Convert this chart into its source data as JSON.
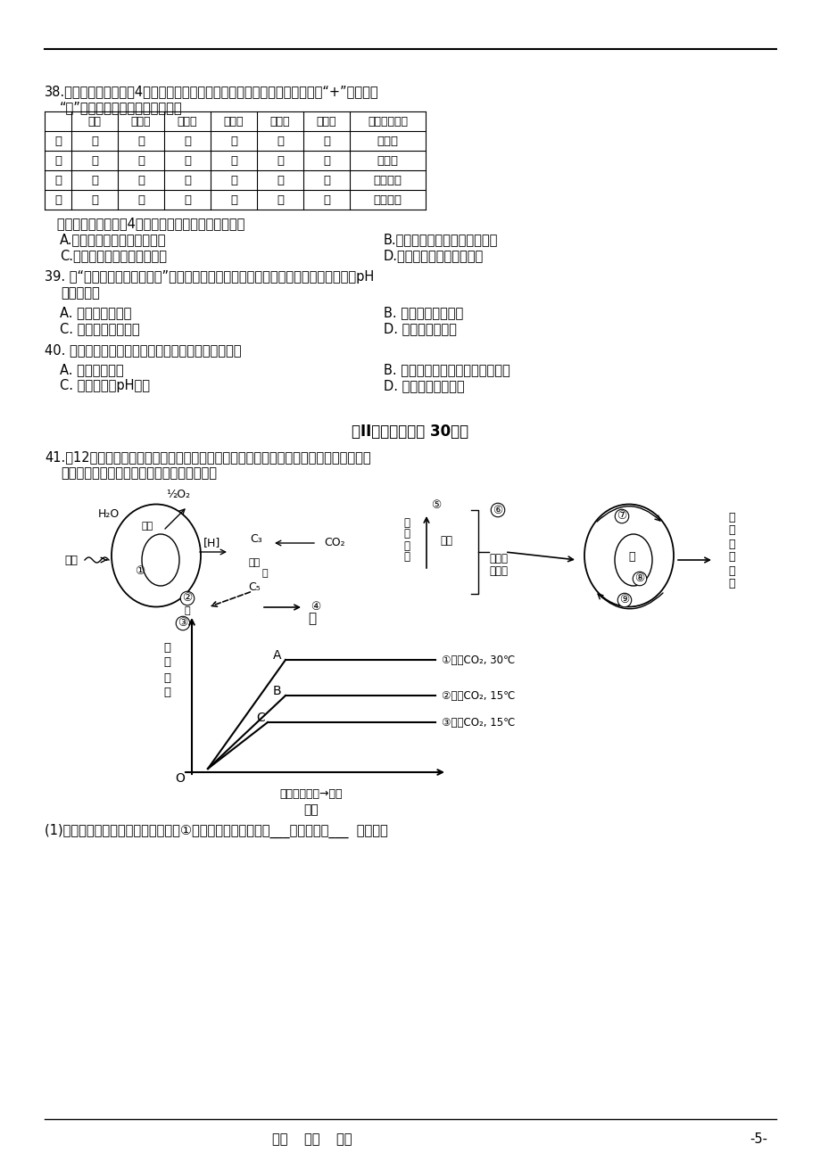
{
  "page_bg": "#ffffff",
  "table_headers": [
    "",
    "核模",
    "叶绻素",
    "叶维体",
    "线粒体",
    "中心体",
    "核糖体",
    "纤维素酶处理"
  ],
  "table_rows": [
    [
      "甲",
      "－",
      "＋",
      "－",
      "－",
      "－",
      "＋",
      "无变化"
    ],
    [
      "乙",
      "＋",
      "－",
      "－",
      "－",
      "＋",
      "＋",
      "无变化"
    ],
    [
      "丙",
      "＋",
      "－",
      "－",
      "＋",
      "－",
      "＋",
      "外层破坏"
    ],
    [
      "丁",
      "＋",
      "＋",
      "＋",
      "＋",
      "＋",
      "＋",
      "外层破坏"
    ]
  ]
}
